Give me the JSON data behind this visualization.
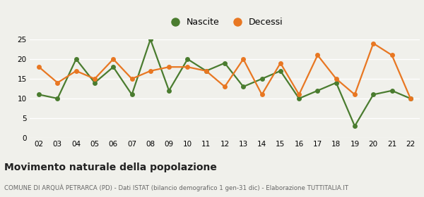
{
  "years": [
    "02",
    "03",
    "04",
    "05",
    "06",
    "07",
    "08",
    "09",
    "10",
    "11",
    "12",
    "13",
    "14",
    "15",
    "16",
    "17",
    "18",
    "19",
    "20",
    "21",
    "22"
  ],
  "nascite": [
    11,
    10,
    20,
    14,
    18,
    11,
    25,
    12,
    20,
    17,
    19,
    13,
    15,
    17,
    10,
    12,
    14,
    3,
    11,
    12,
    10
  ],
  "decessi": [
    18,
    14,
    17,
    15,
    20,
    15,
    17,
    18,
    18,
    17,
    13,
    20,
    11,
    19,
    11,
    21,
    15,
    11,
    24,
    21,
    10
  ],
  "nascite_color": "#4a7c2f",
  "decessi_color": "#e87722",
  "background_color": "#f0f0eb",
  "grid_color": "#ffffff",
  "ylim": [
    0,
    25
  ],
  "yticks": [
    0,
    5,
    10,
    15,
    20,
    25
  ],
  "title": "Movimento naturale della popolazione",
  "subtitle": "COMUNE DI ARQUÀ PETRARCA (PD) - Dati ISTAT (bilancio demografico 1 gen-31 dic) - Elaborazione TUTTITALIA.IT",
  "legend_nascite": "Nascite",
  "legend_decessi": "Decessi",
  "marker_size": 5,
  "line_width": 1.6
}
